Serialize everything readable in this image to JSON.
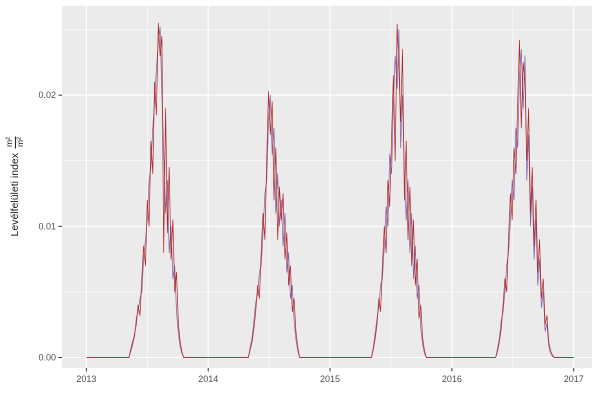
{
  "chart_data": {
    "type": "line",
    "title": "",
    "xlabel": "",
    "ylabel_text": "Levélfelületi index",
    "ylabel_frac_numerator": "m²",
    "ylabel_frac_denominator": "m²",
    "legend": "none",
    "panel_background": "#EBEBEB",
    "grid_major_color": "#FFFFFF",
    "grid_minor_color": "#FFFFFF",
    "tick_label_color": "#4D4D4D",
    "xlim": [
      2012.8,
      2017.15
    ],
    "ylim": [
      -0.0008,
      0.0268
    ],
    "x_ticks": [
      2013,
      2014,
      2015,
      2016,
      2017
    ],
    "x_tick_labels": [
      "2013",
      "2014",
      "2015",
      "2016",
      "2017"
    ],
    "x_minor": [
      2013.5,
      2014.5,
      2015.5,
      2016.5
    ],
    "y_ticks": [
      0,
      0.01,
      0.02
    ],
    "y_tick_labels": [
      "0.00",
      "0.01",
      "0.02"
    ],
    "y_minor": [
      0.005,
      0.015,
      0.025
    ],
    "x_start": 2013.0,
    "x_end": 2017.0,
    "series": [
      {
        "key": "purple",
        "name": "series-purple",
        "color": "#7E5FA8",
        "width": 0.7
      },
      {
        "key": "red",
        "name": "series-red",
        "color": "#B22222",
        "width": 0.7
      }
    ],
    "seasons": [
      {
        "year": 2013,
        "fracs": [
          0.35,
          0.365,
          0.38,
          0.395,
          0.41,
          0.425,
          0.44,
          0.455,
          0.47,
          0.485,
          0.5,
          0.515,
          0.53,
          0.545,
          0.56,
          0.575,
          0.59,
          0.605,
          0.62,
          0.635,
          0.65,
          0.665,
          0.68,
          0.695,
          0.71,
          0.725,
          0.74,
          0.755,
          0.77,
          0.785,
          0.8
        ],
        "red": [
          0,
          0.0005,
          0.001,
          0.0018,
          0.0025,
          0.004,
          0.0032,
          0.006,
          0.0085,
          0.007,
          0.012,
          0.01,
          0.0165,
          0.014,
          0.021,
          0.0185,
          0.0255,
          0.023,
          0.0245,
          0.008,
          0.019,
          0.0095,
          0.0145,
          0.0075,
          0.0105,
          0.005,
          0.0065,
          0.0025,
          0.0012,
          0.0004,
          0
        ],
        "purple": [
          0,
          0.0007,
          0.0013,
          0.0015,
          0.003,
          0.0035,
          0.0045,
          0.005,
          0.0075,
          0.009,
          0.0105,
          0.0135,
          0.0145,
          0.0175,
          0.0195,
          0.022,
          0.024,
          0.0252,
          0.02,
          0.016,
          0.011,
          0.0135,
          0.008,
          0.01,
          0.006,
          0.007,
          0.0035,
          0.0018,
          0.0008,
          0.0003,
          0
        ]
      },
      {
        "year": 2014,
        "fracs": [
          0.33,
          0.345,
          0.36,
          0.375,
          0.39,
          0.405,
          0.42,
          0.435,
          0.45,
          0.465,
          0.48,
          0.495,
          0.51,
          0.525,
          0.54,
          0.555,
          0.57,
          0.585,
          0.6,
          0.615,
          0.63,
          0.645,
          0.66,
          0.675,
          0.69,
          0.705,
          0.72,
          0.735,
          0.75
        ],
        "red": [
          0,
          0.0006,
          0.0012,
          0.0022,
          0.0035,
          0.0055,
          0.0045,
          0.008,
          0.011,
          0.009,
          0.015,
          0.0203,
          0.017,
          0.0195,
          0.012,
          0.016,
          0.009,
          0.013,
          0.0105,
          0.0125,
          0.0075,
          0.0095,
          0.0055,
          0.007,
          0.0035,
          0.0045,
          0.002,
          0.0008,
          0
        ],
        "purple": [
          0,
          0.0008,
          0.0015,
          0.0028,
          0.0042,
          0.0048,
          0.0065,
          0.007,
          0.0095,
          0.0125,
          0.0135,
          0.018,
          0.02,
          0.0155,
          0.0175,
          0.011,
          0.014,
          0.01,
          0.012,
          0.0085,
          0.011,
          0.0065,
          0.008,
          0.0045,
          0.0055,
          0.0028,
          0.0014,
          0.0005,
          0
        ]
      },
      {
        "year": 2015,
        "fracs": [
          0.34,
          0.355,
          0.37,
          0.385,
          0.4,
          0.415,
          0.43,
          0.445,
          0.46,
          0.475,
          0.49,
          0.505,
          0.52,
          0.535,
          0.55,
          0.565,
          0.58,
          0.595,
          0.61,
          0.625,
          0.64,
          0.655,
          0.67,
          0.685,
          0.7,
          0.715,
          0.73,
          0.745,
          0.76,
          0.775,
          0.79
        ],
        "red": [
          0,
          0.0006,
          0.0014,
          0.0025,
          0.0045,
          0.0035,
          0.007,
          0.01,
          0.008,
          0.0135,
          0.0115,
          0.017,
          0.0215,
          0.015,
          0.0254,
          0.022,
          0.018,
          0.0235,
          0.012,
          0.0165,
          0.009,
          0.013,
          0.007,
          0.0105,
          0.0055,
          0.0075,
          0.003,
          0.004,
          0.0015,
          0.0005,
          0
        ],
        "purple": [
          0,
          0.0008,
          0.0018,
          0.003,
          0.0038,
          0.0055,
          0.006,
          0.0085,
          0.0115,
          0.01,
          0.0155,
          0.014,
          0.0195,
          0.023,
          0.0205,
          0.025,
          0.016,
          0.02,
          0.014,
          0.0105,
          0.0135,
          0.008,
          0.011,
          0.006,
          0.0085,
          0.0045,
          0.0055,
          0.0022,
          0.001,
          0.0003,
          0
        ]
      },
      {
        "year": 2016,
        "fracs": [
          0.36,
          0.375,
          0.39,
          0.405,
          0.42,
          0.435,
          0.45,
          0.465,
          0.48,
          0.495,
          0.51,
          0.525,
          0.54,
          0.555,
          0.57,
          0.585,
          0.6,
          0.615,
          0.63,
          0.645,
          0.66,
          0.675,
          0.69,
          0.705,
          0.72,
          0.735,
          0.75,
          0.765,
          0.78,
          0.795,
          0.81,
          0.825,
          0.84
        ],
        "red": [
          0,
          0.0005,
          0.0012,
          0.0022,
          0.004,
          0.006,
          0.005,
          0.009,
          0.0125,
          0.0105,
          0.016,
          0.014,
          0.0195,
          0.0242,
          0.0175,
          0.0225,
          0.021,
          0.015,
          0.019,
          0.011,
          0.0145,
          0.0085,
          0.012,
          0.0065,
          0.009,
          0.0045,
          0.006,
          0.0025,
          0.0032,
          0.0012,
          0.0005,
          0.0002,
          0
        ],
        "purple": [
          0,
          0.0007,
          0.0015,
          0.0028,
          0.0035,
          0.005,
          0.007,
          0.008,
          0.0105,
          0.0135,
          0.012,
          0.0175,
          0.016,
          0.0215,
          0.0235,
          0.019,
          0.023,
          0.0135,
          0.017,
          0.01,
          0.013,
          0.0075,
          0.0105,
          0.0055,
          0.0075,
          0.0038,
          0.005,
          0.002,
          0.0026,
          0.0009,
          0.0003,
          0.0001,
          0
        ]
      }
    ]
  }
}
